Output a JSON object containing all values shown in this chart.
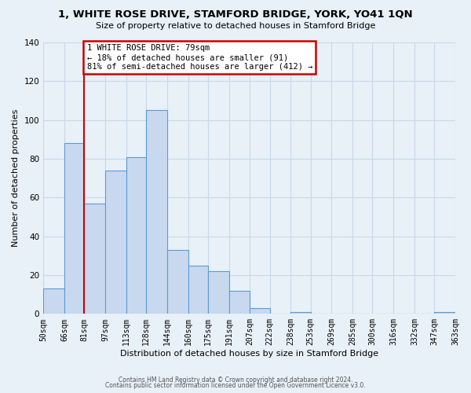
{
  "title": "1, WHITE ROSE DRIVE, STAMFORD BRIDGE, YORK, YO41 1QN",
  "subtitle": "Size of property relative to detached houses in Stamford Bridge",
  "xlabel": "Distribution of detached houses by size in Stamford Bridge",
  "ylabel": "Number of detached properties",
  "bar_edges": [
    50,
    66,
    81,
    97,
    113,
    128,
    144,
    160,
    175,
    191,
    207,
    222,
    238,
    253,
    269,
    285,
    300,
    316,
    332,
    347,
    363
  ],
  "bar_heights": [
    13,
    88,
    57,
    74,
    81,
    105,
    33,
    25,
    22,
    12,
    3,
    0,
    1,
    0,
    0,
    0,
    0,
    0,
    0,
    1
  ],
  "bar_color": "#c8d9ef",
  "bar_edge_color": "#5b9bd5",
  "vline_x": 81,
  "vline_color": "#cc0000",
  "ylim": [
    0,
    140
  ],
  "yticks": [
    0,
    20,
    40,
    60,
    80,
    100,
    120,
    140
  ],
  "tick_labels": [
    "50sqm",
    "66sqm",
    "81sqm",
    "97sqm",
    "113sqm",
    "128sqm",
    "144sqm",
    "160sqm",
    "175sqm",
    "191sqm",
    "207sqm",
    "222sqm",
    "238sqm",
    "253sqm",
    "269sqm",
    "285sqm",
    "300sqm",
    "316sqm",
    "332sqm",
    "347sqm",
    "363sqm"
  ],
  "annotation_text": "1 WHITE ROSE DRIVE: 79sqm\n← 18% of detached houses are smaller (91)\n81% of semi-detached houses are larger (412) →",
  "annotation_box_color": "#ffffff",
  "annotation_box_edge": "#cc0000",
  "grid_color": "#c8d8e8",
  "background_color": "#e8f0f8",
  "footer_line1": "Contains HM Land Registry data © Crown copyright and database right 2024.",
  "footer_line2": "Contains public sector information licensed under the Open Government Licence v3.0.",
  "title_fontsize": 9.5,
  "subtitle_fontsize": 8,
  "label_fontsize": 8,
  "tick_fontsize": 7,
  "annotation_fontsize": 7.5,
  "footer_fontsize": 5.5
}
